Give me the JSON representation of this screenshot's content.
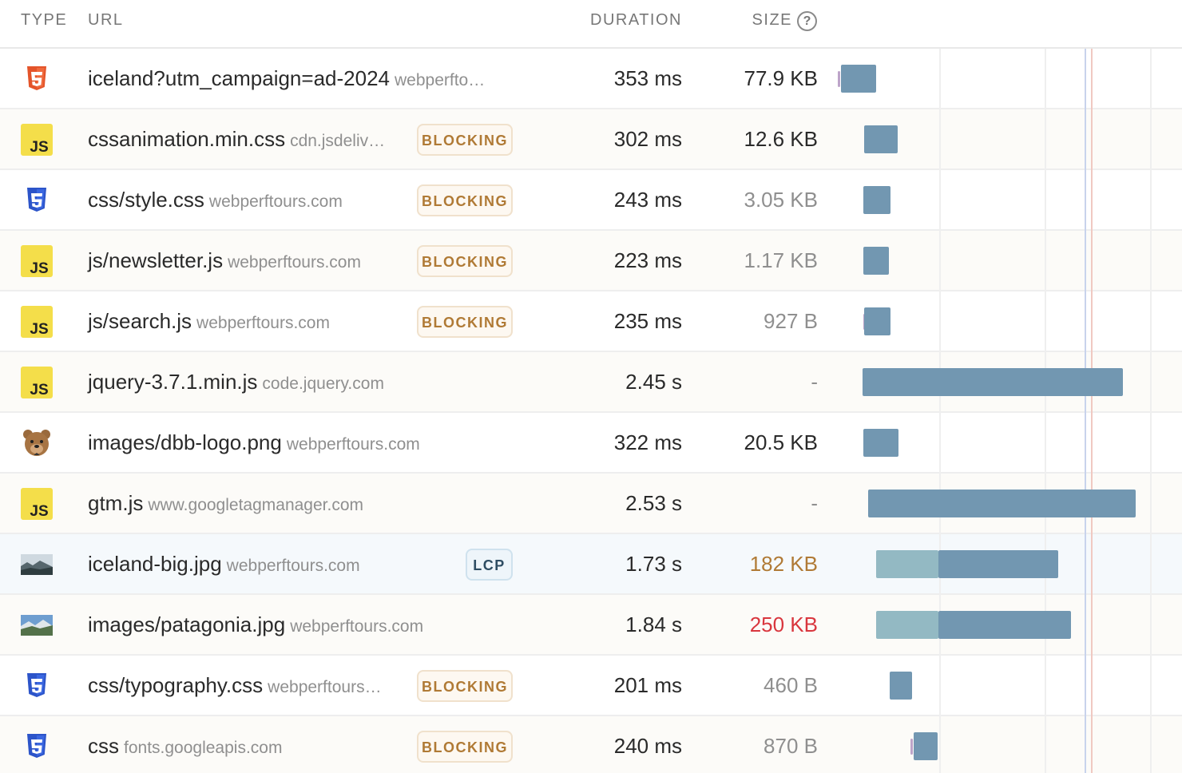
{
  "columns": {
    "type": "TYPE",
    "url": "URL",
    "duration": "DURATION",
    "size": "SIZE",
    "size_help_icon": "?"
  },
  "colors": {
    "bar": "#7297b1",
    "bar_wait": "#93b9c3",
    "blocking_text": "#b07a35",
    "size_warning": "#b07a35",
    "size_danger": "#d9363e",
    "size_muted": "#8f8f8f",
    "size_normal": "#2a2a2a"
  },
  "rows": [
    {
      "type_icon": "html5-icon",
      "url": "iceland?utm_campaign=ad-2024",
      "domain": "webperfto…",
      "badge": "",
      "duration": "353 ms",
      "size": "77.9 KB",
      "size_tone": "normal"
    },
    {
      "type_icon": "js-icon",
      "url": "cssanimation.min.css",
      "domain": "cdn.jsdeliv…",
      "badge": "BLOCKING",
      "duration": "302 ms",
      "size": "12.6 KB",
      "size_tone": "normal"
    },
    {
      "type_icon": "css3-icon",
      "url": "css/style.css",
      "domain": "webperftours.com",
      "badge": "BLOCKING",
      "duration": "243 ms",
      "size": "3.05 KB",
      "size_tone": "muted"
    },
    {
      "type_icon": "js-icon",
      "url": "js/newsletter.js",
      "domain": "webperftours.com",
      "badge": "BLOCKING",
      "duration": "223 ms",
      "size": "1.17 KB",
      "size_tone": "muted"
    },
    {
      "type_icon": "js-icon",
      "url": "js/search.js",
      "domain": "webperftours.com",
      "badge": "BLOCKING",
      "duration": "235 ms",
      "size": "927 B",
      "size_tone": "muted"
    },
    {
      "type_icon": "js-icon",
      "url": "jquery-3.7.1.min.js",
      "domain": "code.jquery.com",
      "badge": "",
      "duration": "2.45 s",
      "size": "-",
      "size_tone": "muted"
    },
    {
      "type_icon": "bear-logo-icon",
      "url": "images/dbb-logo.png",
      "domain": "webperftours.com",
      "badge": "",
      "duration": "322 ms",
      "size": "20.5 KB",
      "size_tone": "normal"
    },
    {
      "type_icon": "js-icon",
      "url": "gtm.js",
      "domain": "www.googletagmanager.com",
      "badge": "",
      "duration": "2.53 s",
      "size": "-",
      "size_tone": "muted"
    },
    {
      "type_icon": "image-thumbnail-icon",
      "url": "iceland-big.jpg",
      "domain": "webperftours.com",
      "badge": "LCP",
      "duration": "1.73 s",
      "size": "182 KB",
      "size_tone": "warning"
    },
    {
      "type_icon": "image-thumbnail-icon",
      "url": "images/patagonia.jpg",
      "domain": "webperftours.com",
      "badge": "",
      "duration": "1.84 s",
      "size": "250 KB",
      "size_tone": "danger"
    },
    {
      "type_icon": "css3-icon",
      "url": "css/typography.css",
      "domain": "webperftours…",
      "badge": "BLOCKING",
      "duration": "201 ms",
      "size": "460 B",
      "size_tone": "muted"
    },
    {
      "type_icon": "css3-icon",
      "url": "css",
      "domain": "fonts.googleapis.com",
      "badge": "BLOCKING",
      "duration": "240 ms",
      "size": "870 B",
      "size_tone": "muted"
    }
  ]
}
